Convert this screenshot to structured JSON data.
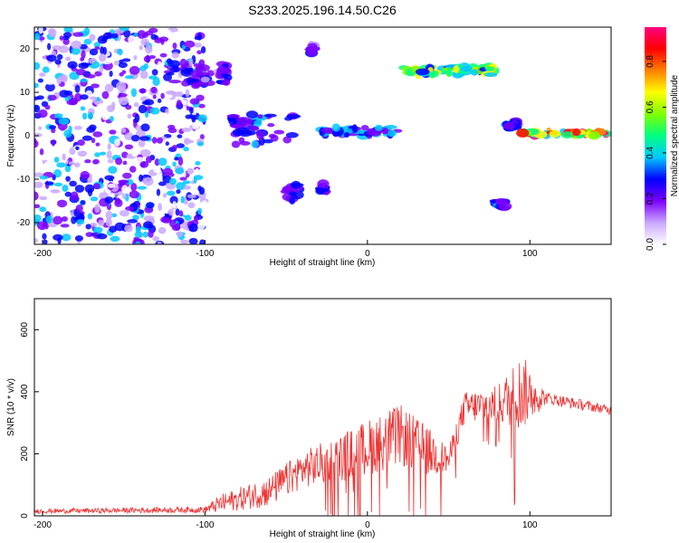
{
  "figure": {
    "title": "S233.2025.196.14.50.C26"
  },
  "chart_data": [
    {
      "type": "heatmap",
      "xlabel": "Height of straight line (km)",
      "ylabel": "Frequency (Hz)",
      "xlim": [
        -205,
        150
      ],
      "ylim": [
        -25,
        25
      ],
      "xticks": [
        -200,
        -100,
        0,
        100
      ],
      "yticks": [
        -20,
        -10,
        0,
        10,
        20
      ],
      "colorbar": {
        "label": "Normalized spectral amplitude",
        "range": [
          0.0,
          0.95
        ],
        "ticks": [
          "0.0",
          "0.2",
          "0.4",
          "0.6",
          "0.8"
        ],
        "colors": [
          "#ffffff",
          "#c9a8ff",
          "#7a00ff",
          "#0000ff",
          "#00c8ff",
          "#00ff80",
          "#7fff00",
          "#ffff00",
          "#ff8000",
          "#ff0000",
          "#ff0080"
        ]
      },
      "features": [
        {
          "name": "noise",
          "x": [
            -205,
            -100
          ],
          "f": [
            -25,
            25
          ],
          "amp": 0.15
        },
        {
          "name": "band",
          "x": [
            -120,
            -85
          ],
          "f": [
            12,
            17
          ],
          "amp": 0.25
        },
        {
          "name": "band",
          "x": [
            -85,
            -45
          ],
          "f": [
            -2,
            5
          ],
          "amp": 0.3
        },
        {
          "name": "band",
          "x": [
            -50,
            -40
          ],
          "f": [
            -15,
            -11
          ],
          "amp": 0.25
        },
        {
          "name": "band",
          "x": [
            -35,
            -33
          ],
          "f": [
            19,
            21
          ],
          "amp": 0.25
        },
        {
          "name": "band",
          "x": [
            -30,
            -25
          ],
          "f": [
            -13,
            -11
          ],
          "amp": 0.25
        },
        {
          "name": "band",
          "x": [
            -28,
            20
          ],
          "f": [
            0,
            2
          ],
          "amp": 0.35
        },
        {
          "name": "band",
          "x": [
            22,
            78
          ],
          "f": [
            14,
            16
          ],
          "amp": 0.6
        },
        {
          "name": "band",
          "x": [
            78,
            85
          ],
          "f": [
            -17,
            -15
          ],
          "amp": 0.3
        },
        {
          "name": "band",
          "x": [
            85,
            92
          ],
          "f": [
            1,
            4
          ],
          "amp": 0.3
        },
        {
          "name": "band",
          "x": [
            95,
            150
          ],
          "f": [
            0,
            1
          ],
          "amp": 0.8
        }
      ]
    },
    {
      "type": "line",
      "xlabel": "Height of straight line (km)",
      "ylabel": "SNR (10 * v/v)",
      "xlim": [
        -205,
        150
      ],
      "ylim": [
        0,
        700
      ],
      "xticks": [
        -200,
        -100,
        0,
        100
      ],
      "yticks": [
        0,
        200,
        400,
        600
      ],
      "series": [
        {
          "color": "#ee3333",
          "envelope": [
            {
              "x": -205,
              "base": 15,
              "spread": 15
            },
            {
              "x": -100,
              "base": 20,
              "spread": 20
            },
            {
              "x": -90,
              "base": 40,
              "spread": 60
            },
            {
              "x": -60,
              "base": 80,
              "spread": 100
            },
            {
              "x": -40,
              "base": 150,
              "spread": 120
            },
            {
              "x": -20,
              "base": 180,
              "spread": 150
            },
            {
              "x": 0,
              "base": 220,
              "spread": 180
            },
            {
              "x": 20,
              "base": 260,
              "spread": 200
            },
            {
              "x": 40,
              "base": 200,
              "spread": 150
            },
            {
              "x": 50,
              "base": 180,
              "spread": 80
            },
            {
              "x": 60,
              "base": 350,
              "spread": 100
            },
            {
              "x": 80,
              "base": 360,
              "spread": 120
            },
            {
              "x": 95,
              "base": 400,
              "spread": 250
            },
            {
              "x": 110,
              "base": 380,
              "spread": 40
            },
            {
              "x": 150,
              "base": 340,
              "spread": 30
            }
          ]
        }
      ]
    }
  ]
}
